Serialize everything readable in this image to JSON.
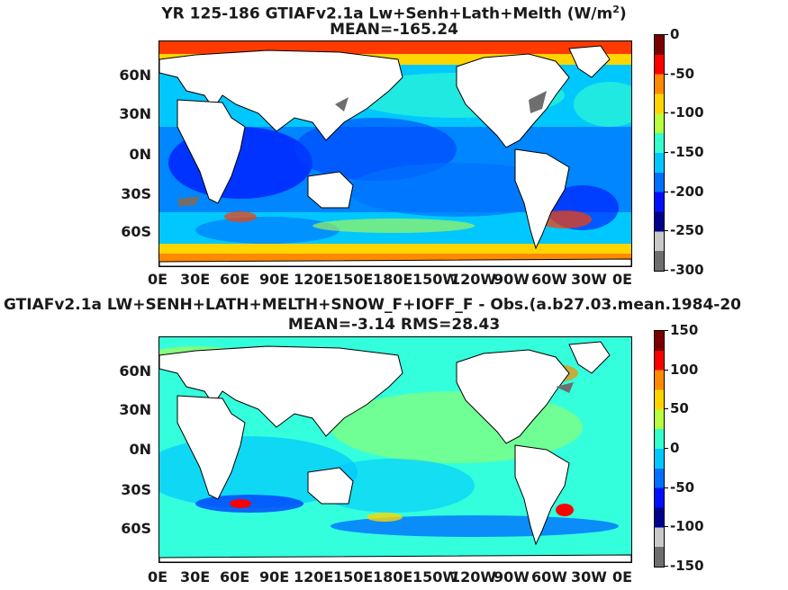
{
  "panels": [
    {
      "title_line1": "YR 125-186 GTIAFv2.1a Lw+Senh+Lath+Melth (W/m",
      "title_sup": "2",
      "title_close": ")",
      "title_line2": "MEAN=-165.24",
      "colorbar_ticks": [
        "0",
        "-50",
        "-100",
        "-150",
        "-200",
        "-250",
        "-300"
      ],
      "colorbar_colors": [
        "#7a0000",
        "#ff0000",
        "#ff8a00",
        "#ffd500",
        "#b8ff3f",
        "#33ffcc",
        "#00c8ff",
        "#0070ff",
        "#0010ff",
        "#00008f",
        "#c8c8c8",
        "#6e6e6e"
      ],
      "colorbar_range": [
        -300,
        0
      ]
    },
    {
      "title_line1": "GTIAFv2.1a LW+SENH+LATH+MELTH+SNOW_F+IOFF_F - Obs.(a.b27.03.mean.1984-20",
      "title_line2": "MEAN=-3.14 RMS=28.43",
      "colorbar_ticks": [
        "150",
        "100",
        "50",
        "0",
        "-50",
        "-100",
        "-150"
      ],
      "colorbar_colors": [
        "#7a0000",
        "#ff0000",
        "#ff8a00",
        "#ffd500",
        "#b8ff3f",
        "#33ffcc",
        "#00c8ff",
        "#0070ff",
        "#0010ff",
        "#00008f",
        "#c8c8c8",
        "#6e6e6e"
      ],
      "colorbar_range": [
        -150,
        150
      ]
    }
  ],
  "lat_labels": [
    "60N",
    "30N",
    "0N",
    "30S",
    "60S"
  ],
  "lon_labels": [
    "0E",
    "30E",
    "60E",
    "90E",
    "120E",
    "150E",
    "180E",
    "150W",
    "120W",
    "90W",
    "60W",
    "30W",
    "0E"
  ]
}
